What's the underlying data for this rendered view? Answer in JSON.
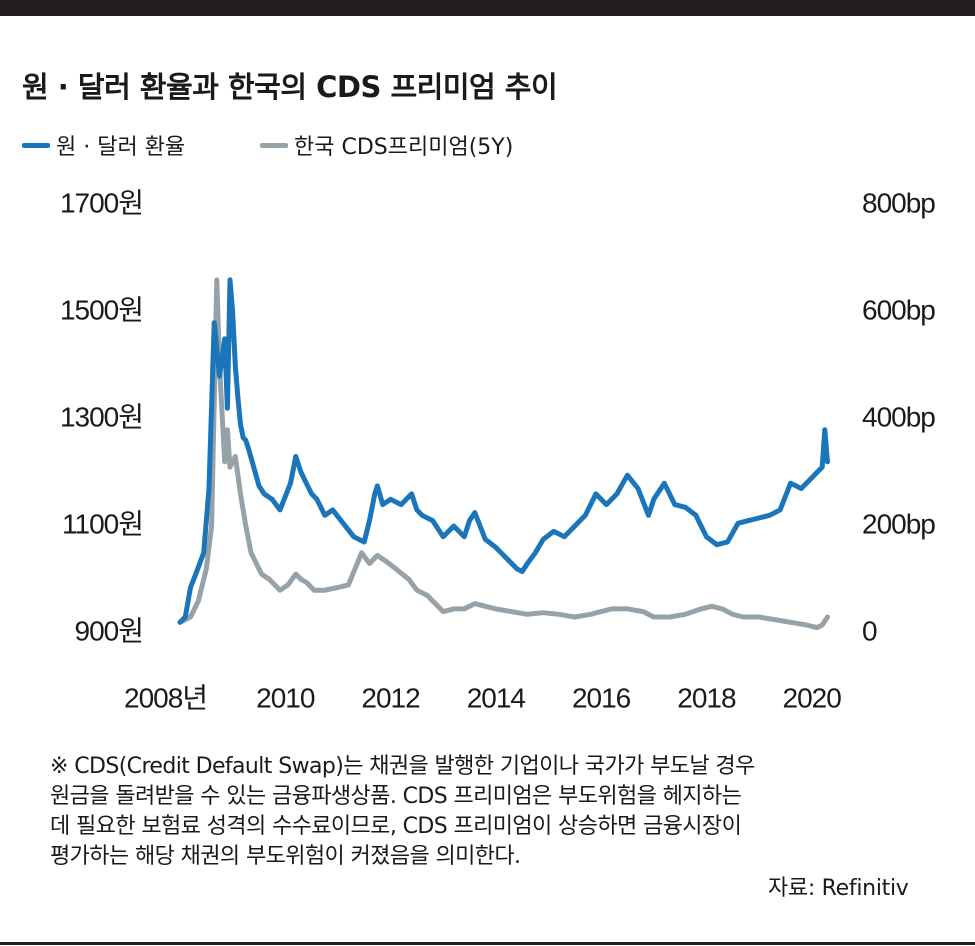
{
  "chart_data": {
    "type": "line",
    "title": "원 · 달러 환율과 한국의 CDS 프리미엄 추이",
    "y_left": {
      "ticks": [
        900,
        1100,
        1300,
        1500,
        1700
      ],
      "labels": [
        "900원",
        "1100원",
        "1300원",
        "1500원",
        "1700원"
      ],
      "range": [
        900,
        1700
      ]
    },
    "y_right": {
      "ticks": [
        0,
        200,
        400,
        600,
        800
      ],
      "labels": [
        "0",
        "200bp",
        "400bp",
        "600bp",
        "800bp"
      ],
      "range": [
        0,
        800
      ]
    },
    "x_axis": {
      "ticks": [
        2008,
        2010,
        2012,
        2014,
        2016,
        2018,
        2020
      ],
      "labels": [
        "2008년",
        "2010",
        "2012",
        "2014",
        "2016",
        "2018",
        "2020"
      ],
      "range": [
        2008,
        2020.5
      ]
    },
    "grid": false,
    "legend_position": "top-left",
    "series": [
      {
        "name": "원 · 달러 환율",
        "axis": "left",
        "color": "#1a75bb",
        "x": [
          2008.0,
          2008.1,
          2008.2,
          2008.3,
          2008.45,
          2008.55,
          2008.65,
          2008.75,
          2008.85,
          2008.9,
          2008.95,
          2009.0,
          2009.05,
          2009.1,
          2009.15,
          2009.2,
          2009.25,
          2009.3,
          2009.4,
          2009.5,
          2009.6,
          2009.75,
          2009.9,
          2010.1,
          2010.2,
          2010.3,
          2010.4,
          2010.5,
          2010.6,
          2010.75,
          2010.9,
          2011.1,
          2011.3,
          2011.5,
          2011.6,
          2011.7,
          2011.75,
          2011.85,
          2012.0,
          2012.2,
          2012.4,
          2012.5,
          2012.6,
          2012.8,
          2013.0,
          2013.2,
          2013.4,
          2013.5,
          2013.6,
          2013.8,
          2014.0,
          2014.2,
          2014.4,
          2014.5,
          2014.6,
          2014.75,
          2014.9,
          2015.1,
          2015.3,
          2015.5,
          2015.7,
          2015.9,
          2016.1,
          2016.3,
          2016.5,
          2016.7,
          2016.9,
          2017.0,
          2017.2,
          2017.4,
          2017.6,
          2017.8,
          2018.0,
          2018.2,
          2018.4,
          2018.6,
          2018.8,
          2019.0,
          2019.2,
          2019.4,
          2019.6,
          2019.8,
          2020.0,
          2020.1,
          2020.2,
          2020.25,
          2020.3
        ],
        "values": [
          920,
          930,
          985,
          1010,
          1050,
          1170,
          1480,
          1380,
          1450,
          1320,
          1560,
          1500,
          1400,
          1340,
          1290,
          1265,
          1260,
          1245,
          1210,
          1175,
          1160,
          1150,
          1130,
          1180,
          1230,
          1200,
          1180,
          1160,
          1150,
          1120,
          1130,
          1105,
          1080,
          1070,
          1110,
          1160,
          1175,
          1140,
          1150,
          1140,
          1160,
          1130,
          1120,
          1110,
          1080,
          1100,
          1080,
          1110,
          1125,
          1075,
          1060,
          1040,
          1020,
          1015,
          1030,
          1050,
          1075,
          1090,
          1080,
          1100,
          1120,
          1160,
          1140,
          1160,
          1195,
          1170,
          1120,
          1150,
          1180,
          1140,
          1135,
          1120,
          1080,
          1065,
          1070,
          1105,
          1110,
          1115,
          1120,
          1130,
          1180,
          1170,
          1190,
          1200,
          1210,
          1280,
          1220
        ]
      },
      {
        "name": "한국 CDS프리미엄(5Y)",
        "axis": "right",
        "color": "#97a1a8",
        "x": [
          2008.0,
          2008.2,
          2008.35,
          2008.5,
          2008.6,
          2008.7,
          2008.75,
          2008.85,
          2008.9,
          2008.95,
          2009.05,
          2009.15,
          2009.25,
          2009.35,
          2009.45,
          2009.55,
          2009.7,
          2009.9,
          2010.05,
          2010.2,
          2010.3,
          2010.4,
          2010.55,
          2010.75,
          2011.0,
          2011.2,
          2011.45,
          2011.6,
          2011.75,
          2011.9,
          2012.1,
          2012.35,
          2012.5,
          2012.7,
          2012.9,
          2013.0,
          2013.2,
          2013.4,
          2013.6,
          2013.8,
          2014.0,
          2014.3,
          2014.6,
          2014.9,
          2015.2,
          2015.5,
          2015.8,
          2016.0,
          2016.2,
          2016.5,
          2016.8,
          2017.0,
          2017.3,
          2017.6,
          2017.9,
          2018.1,
          2018.3,
          2018.5,
          2018.7,
          2019.0,
          2019.3,
          2019.6,
          2019.9,
          2020.1,
          2020.2,
          2020.3
        ],
        "values": [
          20,
          30,
          60,
          120,
          200,
          660,
          500,
          320,
          380,
          310,
          330,
          260,
          200,
          150,
          130,
          110,
          100,
          80,
          90,
          110,
          100,
          95,
          80,
          80,
          85,
          90,
          150,
          130,
          145,
          135,
          120,
          100,
          80,
          70,
          50,
          40,
          45,
          45,
          55,
          50,
          45,
          40,
          35,
          38,
          35,
          30,
          35,
          40,
          45,
          45,
          40,
          30,
          30,
          35,
          45,
          50,
          45,
          35,
          30,
          30,
          25,
          20,
          15,
          10,
          15,
          30
        ]
      }
    ]
  },
  "legend": [
    {
      "label": "원 · 달러 환율",
      "color": "#1a75bb"
    },
    {
      "label": "한국 CDS프리미엄(5Y)",
      "color": "#97a1a8"
    }
  ],
  "note": "※ CDS(Credit Default Swap)는 채권을 발행한 기업이나 국가가 부도날 경우\n원금을 돌려받을 수 있는 금융파생상품. CDS 프리미엄은 부도위험을 헤지하는\n데 필요한 보험료 성격의 수수료이므로, CDS 프리미엄이 상승하면 금융시장이\n평가하는 해당 채권의 부도위험이 커졌음을 의미한다.",
  "source": "자료: Refinitiv"
}
